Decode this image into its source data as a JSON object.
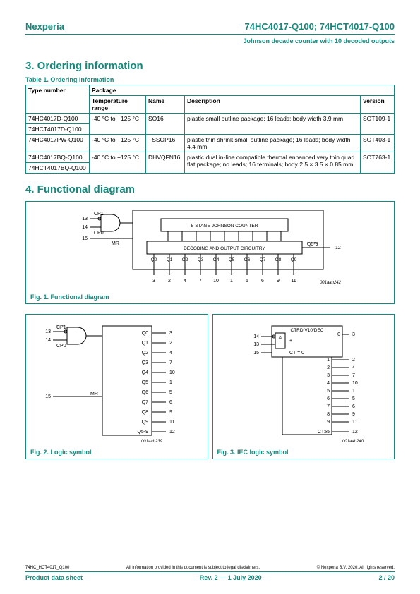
{
  "header": {
    "brand": "Nexperia",
    "part": "74HC4017-Q100; 74HCT4017-Q100",
    "subtitle": "Johnson decade counter with 10 decoded outputs"
  },
  "sections": {
    "ordering": "3.  Ordering information",
    "functional": "4.  Functional diagram"
  },
  "table": {
    "caption": "Table 1. Ordering information",
    "headers": {
      "type": "Type number",
      "package": "Package",
      "temp": "Temperature range",
      "name": "Name",
      "desc": "Description",
      "ver": "Version"
    },
    "rows": [
      {
        "type": "74HC4017D-Q100",
        "temp": "-40 °C to +125 °C",
        "name": "SO16",
        "desc": "plastic small outline package; 16 leads; body width 3.9 mm",
        "ver": "SOT109-1"
      },
      {
        "type": "74HCT4017D-Q100"
      },
      {
        "type": "74HC4017PW-Q100",
        "temp": "-40 °C to +125 °C",
        "name": "TSSOP16",
        "desc": "plastic thin shrink small outline package; 16 leads; body width 4.4 mm",
        "ver": "SOT403-1"
      },
      {
        "type": "74HC4017BQ-Q100",
        "temp": "-40 °C to +125 °C",
        "name": "DHVQFN16",
        "desc": "plastic dual in-line compatible thermal enhanced very thin quad flat package; no leads; 16 terminals; body 2.5 × 3.5 × 0.85 mm",
        "ver": "SOT763-1"
      },
      {
        "type": "74HCT4017BQ-Q100"
      }
    ]
  },
  "fig1": {
    "caption": "Fig. 1.    Functional diagram",
    "code": "001aah242",
    "inputs": {
      "cp1": "CP1",
      "cp0": "CP0",
      "mr": "MR"
    },
    "pins_in": {
      "cp1": "13",
      "cp0": "14",
      "mr": "15"
    },
    "blocks": {
      "counter": "5-STAGE JOHNSON COUNTER",
      "decode": "DECODING AND OUTPUT CIRCUITRY"
    },
    "q59": "Q5-9",
    "q59_pin": "12",
    "outputs": [
      "Q0",
      "Q1",
      "Q2",
      "Q3",
      "Q4",
      "Q5",
      "Q6",
      "Q7",
      "Q8",
      "Q9"
    ],
    "out_pins": [
      "3",
      "2",
      "4",
      "7",
      "10",
      "1",
      "5",
      "6",
      "9",
      "11"
    ]
  },
  "fig2": {
    "caption": "Fig. 2.    Logic symbol",
    "code": "001aah239",
    "inputs": {
      "cp1": "CP1",
      "cp0": "CP0",
      "mr": "MR"
    },
    "pins_in": {
      "cp1": "13",
      "cp0": "14",
      "mr": "15"
    },
    "outs": [
      {
        "l": "Q0",
        "p": "3"
      },
      {
        "l": "Q1",
        "p": "2"
      },
      {
        "l": "Q2",
        "p": "4"
      },
      {
        "l": "Q3",
        "p": "7"
      },
      {
        "l": "Q4",
        "p": "10"
      },
      {
        "l": "Q5",
        "p": "1"
      },
      {
        "l": "Q6",
        "p": "5"
      },
      {
        "l": "Q7",
        "p": "6"
      },
      {
        "l": "Q8",
        "p": "9"
      },
      {
        "l": "Q9",
        "p": "11"
      },
      {
        "l": "Q5-9",
        "p": "12"
      }
    ]
  },
  "fig3": {
    "caption": "Fig. 3.    IEC logic symbol",
    "code": "001aah240",
    "top": "CTRDIV10/DEC",
    "left": [
      {
        "pin": "14",
        "l": "&"
      },
      {
        "pin": "13",
        "l": "+"
      },
      {
        "pin": "15",
        "l": "CT = 0"
      }
    ],
    "right": [
      {
        "v": "0",
        "p": "3"
      },
      {
        "v": "1",
        "p": "2"
      },
      {
        "v": "2",
        "p": "4"
      },
      {
        "v": "3",
        "p": "7"
      },
      {
        "v": "4",
        "p": "10"
      },
      {
        "v": "5",
        "p": "1"
      },
      {
        "v": "6",
        "p": "5"
      },
      {
        "v": "7",
        "p": "6"
      },
      {
        "v": "8",
        "p": "9"
      },
      {
        "v": "9",
        "p": "11"
      },
      {
        "v": "CT≥5",
        "p": "12"
      }
    ]
  },
  "footer": {
    "doc": "74HC_HCT4017_Q100",
    "disclaim": "All information provided in this document is subject to legal disclaimers.",
    "copy": "© Nexperia B.V. 2020. All rights reserved.",
    "left": "Product data sheet",
    "center": "Rev. 2 — 1 July 2020",
    "right": "2 / 20"
  }
}
